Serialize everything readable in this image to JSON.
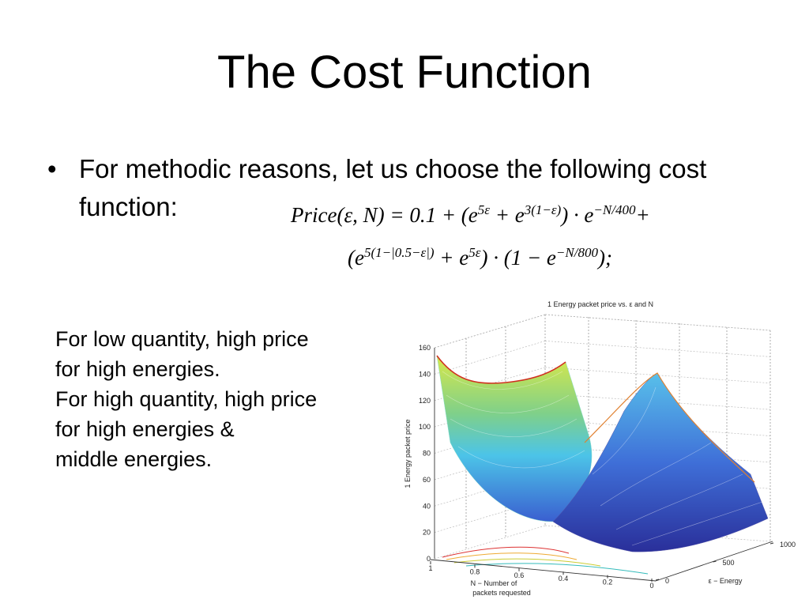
{
  "title": "The Cost Function",
  "bullets": [
    "For methodic reasons, let us choose the following cost function:"
  ],
  "formula": {
    "lines": [
      [
        {
          "base": "Price(ε, N) = 0.1 + (e",
          "sup": "5ε"
        },
        {
          "base": " + e",
          "sup": "3(1−ε)"
        },
        {
          "base": ") · e",
          "sup": "−N/400"
        },
        {
          "base": "+"
        }
      ],
      [
        {
          "base": "(e",
          "sup": "5(1−|0.5−ε|)"
        },
        {
          "base": " + e",
          "sup": "5ε"
        },
        {
          "base": ") · (1 − e",
          "sup": "−N/800"
        },
        {
          "base": ");"
        }
      ]
    ]
  },
  "notes": [
    "For low quantity, high price",
    "for high energies.",
    "For high quantity, high price",
    "for high energies &",
    "middle energies."
  ],
  "figure": {
    "title": "1 Energy packet price vs. ε and N",
    "z_label": "1 Energy packet price",
    "z_ticks": [
      0,
      20,
      40,
      60,
      80,
      100,
      120,
      140,
      160
    ],
    "n_label": [
      "N − Number of",
      "packets requested"
    ],
    "n_ticks": [
      1,
      0.8,
      0.6,
      0.4,
      0.2,
      0
    ],
    "e_label": "ε − Energy",
    "e_ticks": [
      0,
      500,
      1000
    ]
  }
}
